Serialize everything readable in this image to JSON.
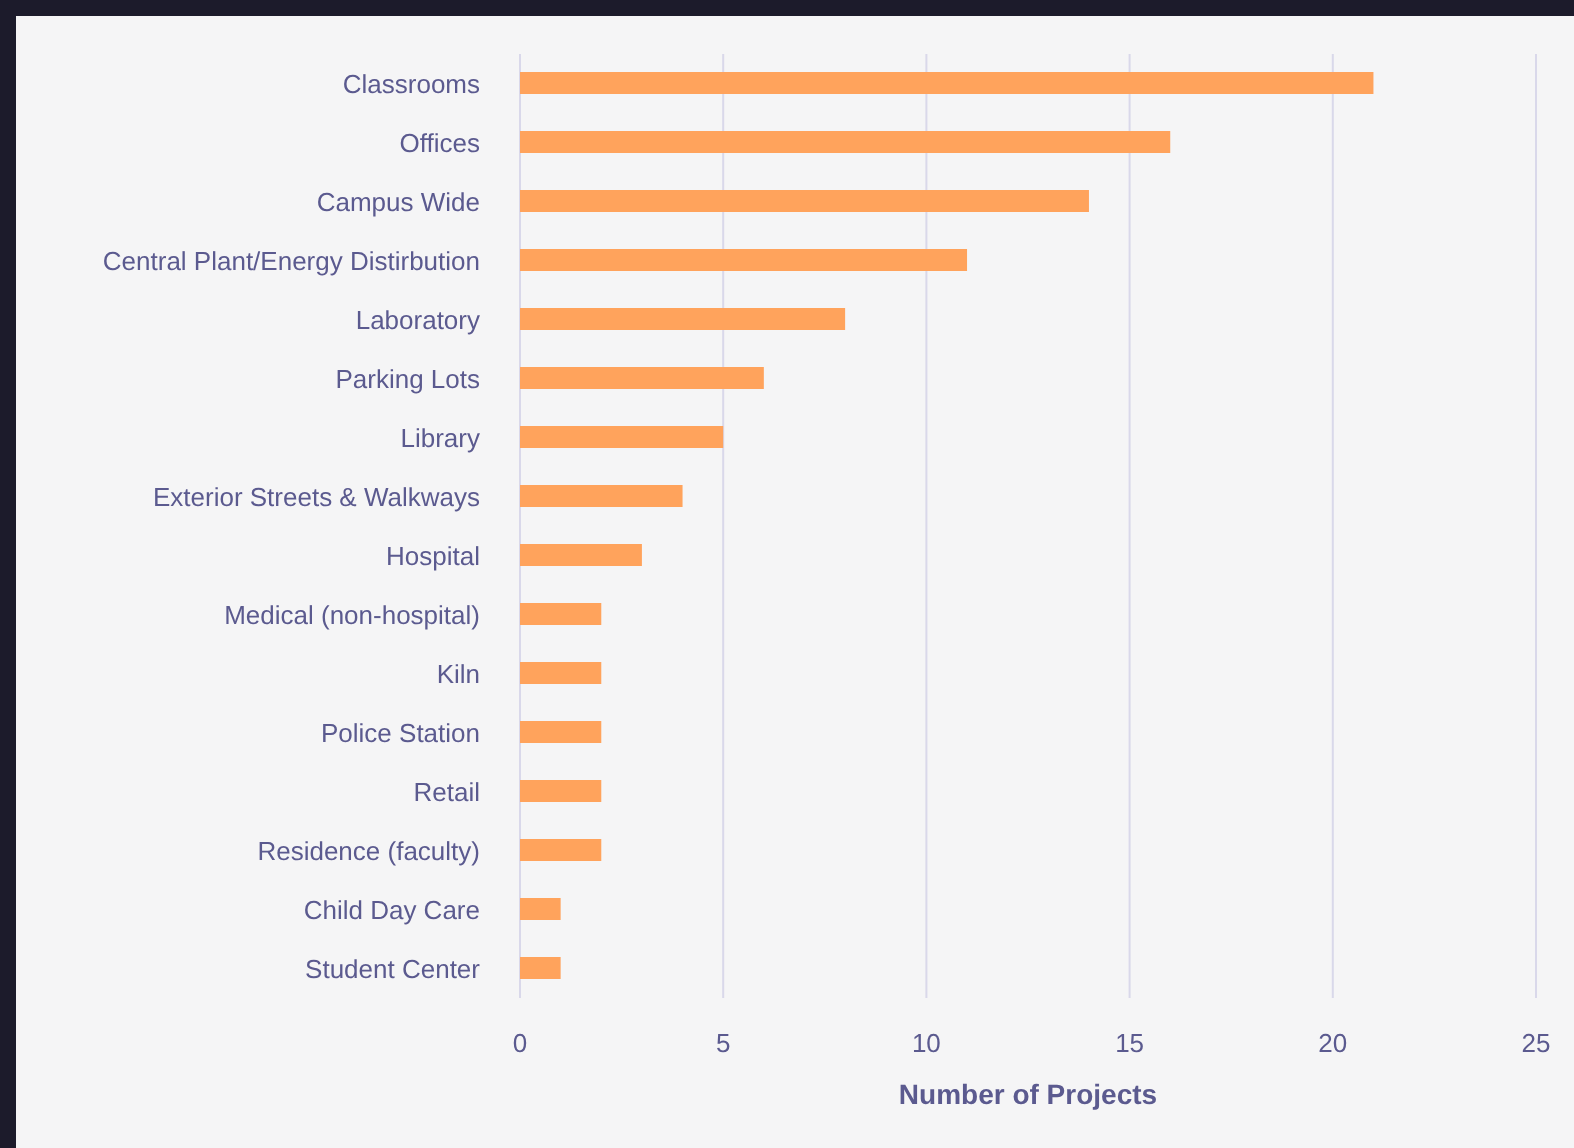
{
  "chart_data": {
    "type": "bar",
    "orientation": "horizontal",
    "xlabel": "Number of Projects",
    "categories": [
      "Classrooms",
      "Offices",
      "Campus Wide",
      "Central Plant/Energy Distirbution",
      "Laboratory",
      "Parking Lots",
      "Library",
      "Exterior Streets & Walkways",
      "Hospital",
      "Medical  (non-hospital)",
      "Kiln",
      "Police Station",
      "Retail",
      "Residence (faculty)",
      "Child Day Care",
      "Student Center"
    ],
    "values": [
      21,
      16,
      14,
      11,
      8,
      6,
      5,
      4,
      3,
      2,
      2,
      2,
      2,
      2,
      1,
      1
    ],
    "color": "#ffa35c",
    "xlim": [
      0,
      25
    ],
    "xticks": [
      0,
      5,
      10,
      15,
      20,
      25
    ],
    "grid": "x"
  }
}
